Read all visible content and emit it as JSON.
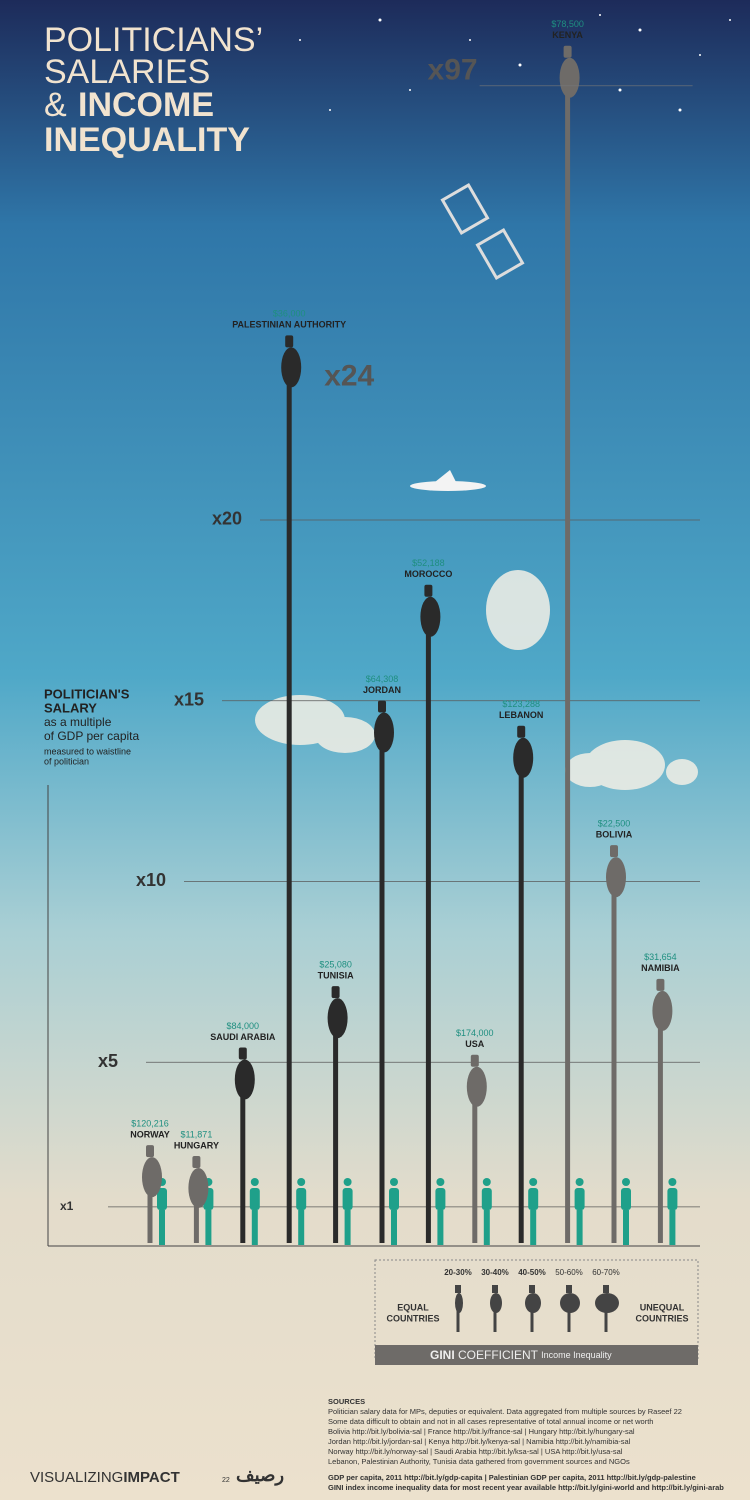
{
  "chart_data": {
    "type": "bar",
    "title": [
      "POLITICIANS’",
      "SALARIES",
      "&",
      "INCOME",
      "INEQUALITY"
    ],
    "ylabel": [
      "POLITICIAN'S",
      "SALARY",
      "as a multiple",
      "of GDP per capita",
      "measured to waistline",
      "of politician"
    ],
    "categories": [
      "NORWAY",
      "HUNGARY",
      "SAUDI ARABIA",
      "PALESTINIAN AUTHORITY",
      "TUNISIA",
      "JORDAN",
      "MOROCCO",
      "USA",
      "LEBANON",
      "KENYA",
      "BOLIVIA",
      "NAMIBIA"
    ],
    "salaries": [
      "$120,216",
      "$11,871",
      "$84,000",
      "$36,000",
      "$25,080",
      "$64,308",
      "$52,188",
      "$174,000",
      "$123,288",
      "$78,500",
      "$22,500",
      "$31,654"
    ],
    "series": [
      {
        "values": [
          1.6,
          1.3,
          4.3,
          24,
          6.0,
          13.9,
          17.1,
          4.1,
          13.2,
          null,
          9.9,
          6.2
        ],
        "value_labels": [
          null,
          null,
          null,
          "x24",
          null,
          null,
          null,
          null,
          null,
          null,
          null,
          null
        ],
        "colors": [
          "#6e6b68",
          "#6e6b68",
          "#2a2a2a",
          "#2a2a2a",
          "#2a2a2a",
          "#2a2a2a",
          "#2a2a2a",
          "#6e6b68",
          "#2a2a2a",
          null,
          "#6e6b68",
          "#6e6b68"
        ]
      },
      {
        "axis": "y2",
        "values": [
          null,
          null,
          null,
          null,
          null,
          null,
          null,
          null,
          null,
          97,
          null,
          null
        ],
        "value_labels": [
          null,
          null,
          null,
          null,
          null,
          null,
          null,
          null,
          null,
          "x97",
          null,
          null
        ],
        "color": "#6e6b68"
      }
    ],
    "ylim": [
      0,
      33
    ],
    "yticks": [
      {
        "value": 1,
        "label": "x1"
      },
      {
        "value": 5,
        "label": "x5"
      },
      {
        "value": 10,
        "label": "x10"
      },
      {
        "value": 15,
        "label": "x15"
      },
      {
        "value": 20,
        "label": "x20"
      }
    ],
    "y2lim": [
      0,
      100
    ],
    "grid": true
  },
  "legend": {
    "groups": [
      "20-30%",
      "30-40%",
      "40-50%",
      "50-60%",
      "60-70%"
    ],
    "left": [
      "EQUAL",
      "COUNTRIES"
    ],
    "right": [
      "UNEQUAL",
      "COUNTRIES"
    ],
    "bar_bold": "GINI",
    "bar_main": "COEFFICIENT",
    "bar_sub": "Income Inequality"
  },
  "sources": [
    "SOURCES",
    "Politician salary data for MPs, deputies or equivalent. Data aggregated from multiple sources by Raseef 22",
    "Some data difficult to obtain and not in all cases representative of total annual income or net worth",
    "Bolivia http://bit.ly/bolivia-sal | France http://bit.ly/france-sal | Hungary http://bit.ly/hungary-sal",
    "Jordan http://bit.ly/jordan-sal | Kenya http://bit.ly/kenya-sal | Namibia http://bit.ly/namibia-sal",
    "Norway http://bit.ly/norway-sal | Saudi Arabia http://bit.ly/ksa-sal | USA http://bit.ly/usa-sal",
    "Lebanon, Palestinian Authority, Tunisia data gathered from government sources and NGOs",
    "GDP per capita, 2011 http://bit.ly/gdp-capita | Palestinian GDP per capita, 2011 http://bit.ly/gdp-palestine",
    "GINI index income inequality data for most recent year available http://bit.ly/gini-world and http://bit.ly/gini-arab"
  ],
  "footer": {
    "brand_light": "VISUALIZING",
    "brand_bold": "IMPACT",
    "partner": "رصيف",
    "partner_num": "22"
  }
}
